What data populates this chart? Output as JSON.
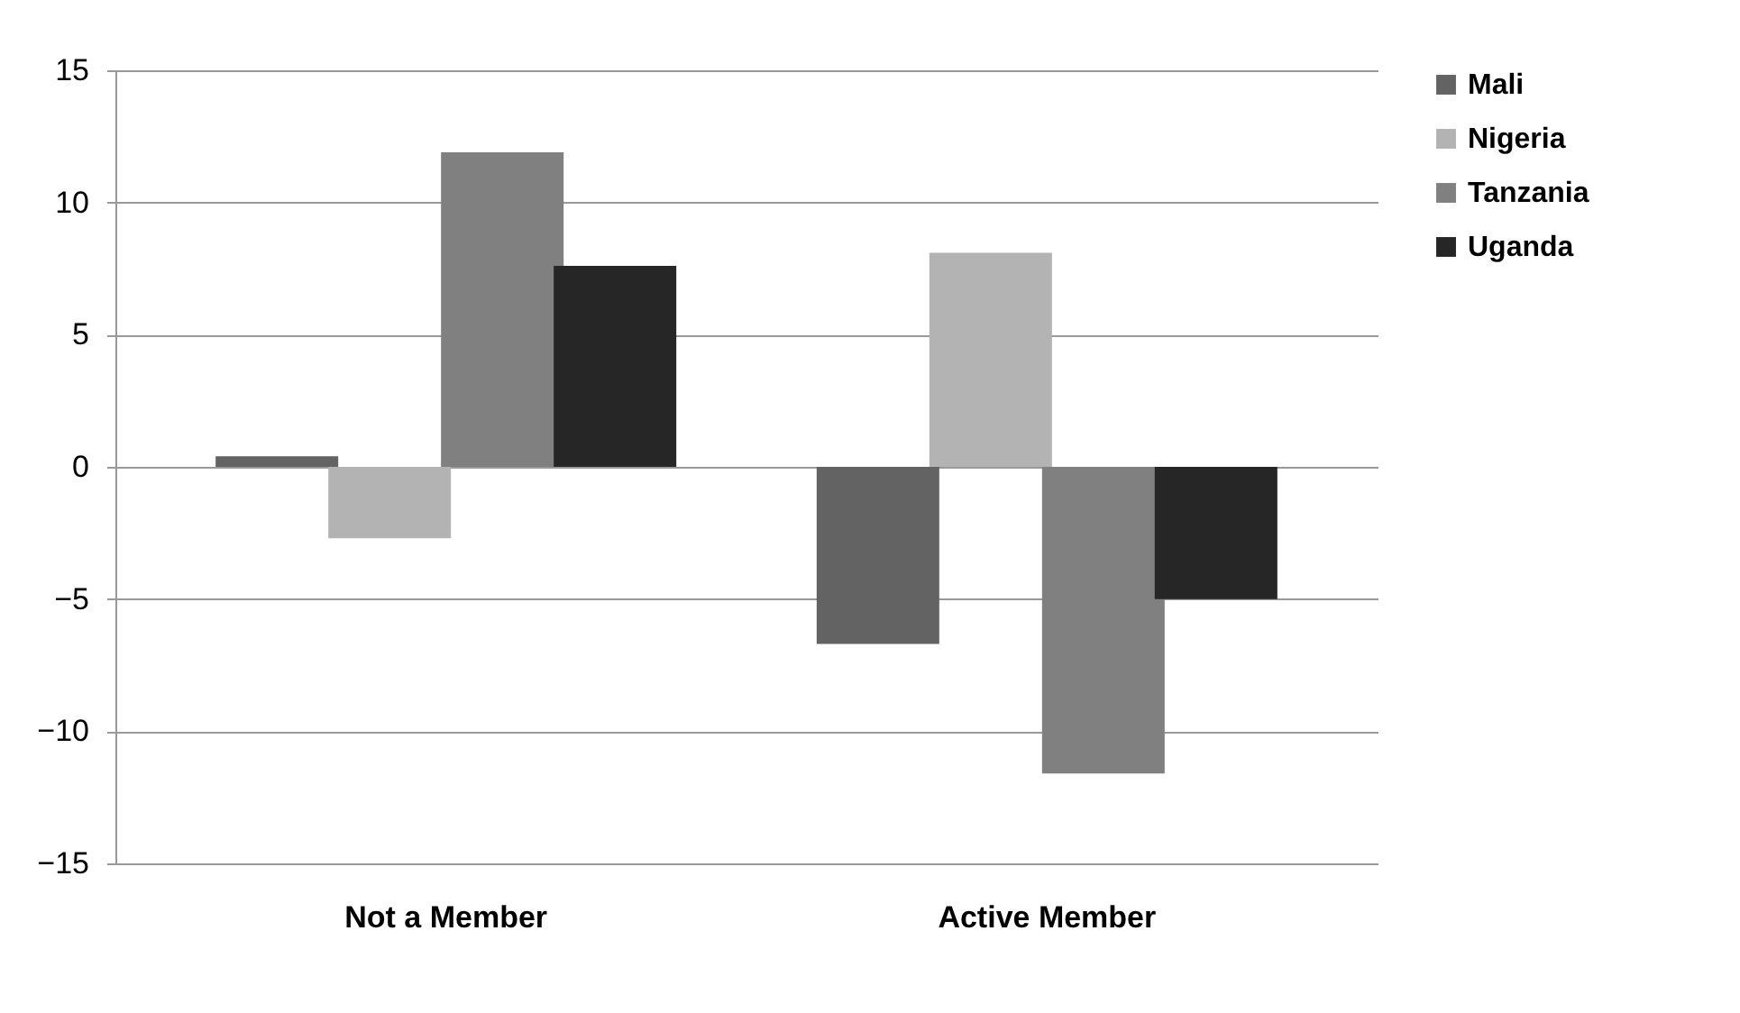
{
  "chart_data": {
    "type": "bar",
    "categories": [
      "Not a Member",
      "Active Member"
    ],
    "series": [
      {
        "name": "Mali",
        "color": "#636363",
        "values": [
          0.4,
          -6.7
        ]
      },
      {
        "name": "Nigeria",
        "color": "#b3b3b3",
        "values": [
          -2.7,
          8.1
        ]
      },
      {
        "name": "Tanzania",
        "color": "#808080",
        "values": [
          11.9,
          -11.6
        ]
      },
      {
        "name": "Uganda",
        "color": "#262626",
        "values": [
          7.6,
          -5.0
        ]
      }
    ],
    "ylim": [
      -15,
      15
    ],
    "yticks": [
      -15,
      -10,
      -5,
      0,
      5,
      10,
      15
    ],
    "grid": "y",
    "legend": "right"
  }
}
